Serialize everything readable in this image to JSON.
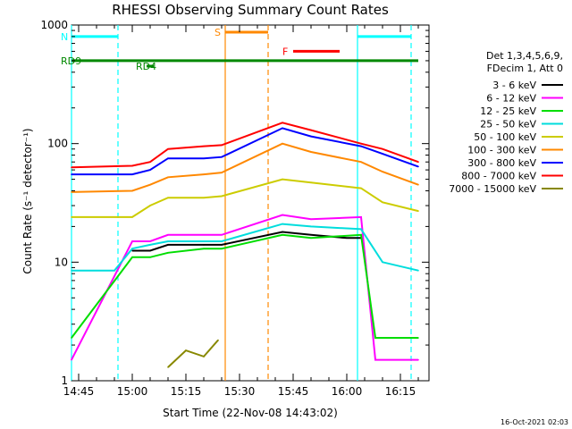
{
  "chart_data": {
    "type": "line",
    "title": "RHESSI Observing Summary Count Rates",
    "xlabel": "Start Time (22-Nov-08 14:43:02)",
    "ylabel": "Count Rate (s⁻¹ detector⁻¹)",
    "yscale": "log",
    "ylim": [
      1,
      1000
    ],
    "xlim": [
      "14:43",
      "16:23"
    ],
    "x_ticks": [
      "14:45",
      "15:00",
      "15:15",
      "15:30",
      "15:45",
      "16:00",
      "16:15"
    ],
    "y_ticks": [
      "1",
      "10",
      "100",
      "1000"
    ],
    "legend_header": [
      "Det 1,3,4,5,6,9,",
      "FDecim 1, Att 0"
    ],
    "legend_placement": "right",
    "grid": false,
    "series": [
      {
        "name": "3 - 6 keV",
        "color": "#000000",
        "x": [
          "15:00",
          "15:05",
          "15:10",
          "15:20",
          "15:25",
          "15:42",
          "15:50",
          "16:00",
          "16:04",
          "16:05"
        ],
        "y": [
          12.5,
          12.5,
          14,
          14,
          14,
          18,
          17,
          16,
          16,
          null
        ]
      },
      {
        "name": "6 - 12 keV",
        "color": "#ff00ff",
        "x": [
          "14:43",
          "15:00",
          "15:05",
          "15:10",
          "15:20",
          "15:25",
          "15:42",
          "15:50",
          "16:04",
          "16:08",
          "16:20"
        ],
        "y": [
          1.5,
          15,
          15,
          17,
          17,
          17,
          25,
          23,
          24,
          1.5,
          1.5
        ]
      },
      {
        "name": "12 - 25 keV",
        "color": "#00dd00",
        "x": [
          "14:43",
          "15:00",
          "15:05",
          "15:10",
          "15:20",
          "15:25",
          "15:42",
          "15:50",
          "16:04",
          "16:08",
          "16:20"
        ],
        "y": [
          2.3,
          11,
          11,
          12,
          13,
          13,
          17,
          16,
          17,
          2.3,
          2.3
        ]
      },
      {
        "name": "25 - 50 keV",
        "color": "#00dddd",
        "x": [
          "14:43",
          "14:55",
          "15:00",
          "15:05",
          "15:10",
          "15:20",
          "15:25",
          "15:42",
          "15:50",
          "16:04",
          "16:10",
          "16:20"
        ],
        "y": [
          8.5,
          8.5,
          13,
          14,
          15,
          15,
          15,
          21,
          20,
          19,
          10,
          8.5
        ]
      },
      {
        "name": "50 - 100 keV",
        "color": "#cccc00",
        "x": [
          "14:43",
          "15:00",
          "15:05",
          "15:10",
          "15:20",
          "15:25",
          "15:42",
          "15:50",
          "16:04",
          "16:10",
          "16:20"
        ],
        "y": [
          24,
          24,
          30,
          35,
          35,
          36,
          50,
          47,
          42,
          32,
          27
        ]
      },
      {
        "name": "100 - 300 keV",
        "color": "#ff8800",
        "x": [
          "14:43",
          "15:00",
          "15:05",
          "15:10",
          "15:20",
          "15:25",
          "15:42",
          "15:50",
          "16:04",
          "16:10",
          "16:20"
        ],
        "y": [
          39,
          40,
          45,
          52,
          55,
          57,
          100,
          85,
          70,
          58,
          45
        ]
      },
      {
        "name": "300 - 800 keV",
        "color": "#0000ff",
        "x": [
          "14:43",
          "15:00",
          "15:05",
          "15:10",
          "15:20",
          "15:25",
          "15:42",
          "15:50",
          "16:04",
          "16:10",
          "16:20"
        ],
        "y": [
          55,
          55,
          60,
          75,
          75,
          77,
          135,
          115,
          95,
          82,
          64
        ]
      },
      {
        "name": "800 - 7000 keV",
        "color": "#ff0000",
        "x": [
          "14:43",
          "15:00",
          "15:05",
          "15:10",
          "15:20",
          "15:25",
          "15:42",
          "15:50",
          "16:04",
          "16:10",
          "16:20"
        ],
        "y": [
          63,
          65,
          70,
          90,
          95,
          97,
          150,
          130,
          100,
          90,
          70
        ]
      },
      {
        "name": "7000 - 15000 keV",
        "color": "#888800",
        "x": [
          "15:10",
          "15:15",
          "15:20",
          "15:24"
        ],
        "y": [
          1.3,
          1.8,
          1.6,
          2.2
        ]
      }
    ],
    "annotations": [
      {
        "label": "N",
        "color": "#00ffff",
        "x": [
          "14:43",
          "14:56"
        ],
        "y": 800
      },
      {
        "label": "S",
        "color": "#ff8800",
        "x": [
          "15:26",
          "15:38"
        ],
        "y": 870
      },
      {
        "label": "F",
        "color": "#ff0000",
        "x": [
          "15:45",
          "15:58"
        ],
        "y": 600
      },
      {
        "label": "RD4",
        "color": "#008800",
        "x": [
          "15:04",
          "15:06"
        ],
        "y": 450
      },
      {
        "label": "RD9",
        "color": "#008800",
        "x": [
          "14:43",
          "16:20"
        ],
        "y": 500
      },
      {
        "label": "",
        "color": "#00ffff",
        "x": [
          "16:03",
          "16:18"
        ],
        "y": 800
      }
    ],
    "vertical_markers": [
      {
        "x": "14:43",
        "color": "#00ffff",
        "style": "solid"
      },
      {
        "x": "14:56",
        "color": "#00ffff",
        "style": "dashed"
      },
      {
        "x": "15:26",
        "color": "#ff8800",
        "style": "solid"
      },
      {
        "x": "15:38",
        "color": "#ff8800",
        "style": "dashed"
      },
      {
        "x": "16:03",
        "color": "#00ffff",
        "style": "solid"
      },
      {
        "x": "16:18",
        "color": "#00ffff",
        "style": "dashed"
      }
    ]
  },
  "footer": {
    "timestamp": "16-Oct-2021 02:03"
  }
}
